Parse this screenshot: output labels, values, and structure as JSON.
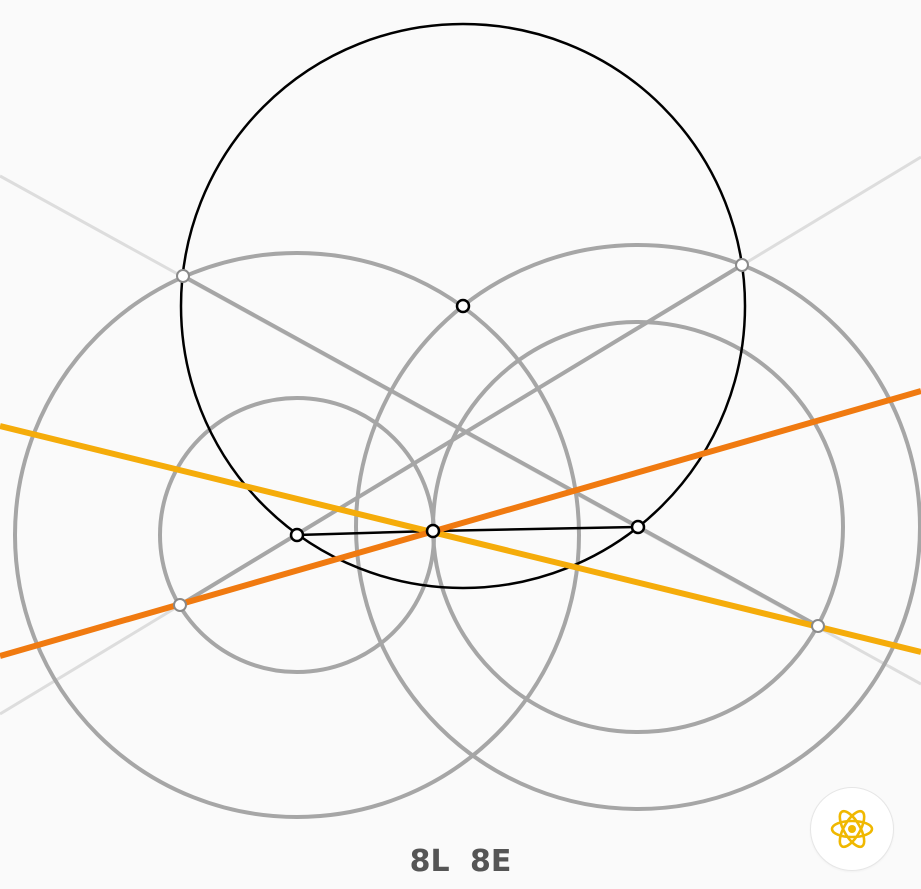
{
  "score": {
    "lines_label": "8L",
    "euclid_label": "8E"
  },
  "colors": {
    "background": "#fafafa",
    "goal_line_1": "#f5ac0a",
    "goal_line_2": "#f07a10",
    "construction": "#a6a6a6",
    "faint_line": "#dddddd",
    "given": "#000000",
    "hint_icon": "#f0b800"
  },
  "icons": {
    "hint": "atom-icon"
  }
}
